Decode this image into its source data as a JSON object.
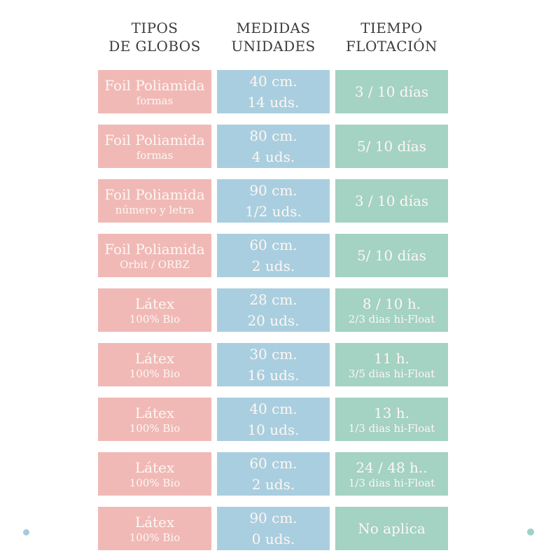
{
  "headers": {
    "tipos": [
      "TIPOS",
      "DE GLOBOS"
    ],
    "medidas": [
      "MEDIDAS",
      "UNIDADES"
    ],
    "tiempo": [
      "TIEMPO",
      "FLOTACIÓN"
    ]
  },
  "rows": [
    {
      "tipo": "Foil Poliamida",
      "tipo_sub": "formas",
      "medida": "40 cm.",
      "unidades": "14 uds.",
      "tiempo": "3 / 10 días",
      "tiempo_sub": ""
    },
    {
      "tipo": "Foil Poliamida",
      "tipo_sub": "formas",
      "medida": "80 cm.",
      "unidades": "4 uds.",
      "tiempo": "5/ 10 días",
      "tiempo_sub": ""
    },
    {
      "tipo": "Foil Poliamida",
      "tipo_sub": "número y letra",
      "medida": "90 cm.",
      "unidades": "1/2 uds.",
      "tiempo": "3 / 10 días",
      "tiempo_sub": ""
    },
    {
      "tipo": "Foil Poliamida",
      "tipo_sub": "Orbit / ORBZ",
      "medida": "60 cm.",
      "unidades": "2 uds.",
      "tiempo": "5/ 10 días",
      "tiempo_sub": ""
    },
    {
      "tipo": "Látex",
      "tipo_sub": "100% Bio",
      "medida": "28 cm.",
      "unidades": "20 uds.",
      "tiempo": "8 / 10 h.",
      "tiempo_sub": "2/3 dias hi-Float"
    },
    {
      "tipo": "Látex",
      "tipo_sub": "100% Bio",
      "medida": "30 cm.",
      "unidades": "16 uds.",
      "tiempo": "11 h.",
      "tiempo_sub": "3/5 dias hi-Float"
    },
    {
      "tipo": "Látex",
      "tipo_sub": "100% Bio",
      "medida": "40 cm.",
      "unidades": "10 uds.",
      "tiempo": "13 h.",
      "tiempo_sub": "1/3 dias hi-Float"
    },
    {
      "tipo": "Látex",
      "tipo_sub": "100% Bio",
      "medida": "60 cm.",
      "unidades": "2 uds.",
      "tiempo": "24 / 48 h..",
      "tiempo_sub": "1/3 dias hi-Float"
    },
    {
      "tipo": "Látex",
      "tipo_sub": "100% Bio",
      "medida": "90 cm.",
      "unidades": "0 uds.",
      "tiempo": "No aplica",
      "tiempo_sub": ""
    }
  ],
  "colors": {
    "pink_cell": "#f0b9b6",
    "blue_cell": "#a9cedf",
    "green_cell": "#a4d2c3",
    "header_text": "#3c3c3c",
    "cell_text": "#fdf7f3",
    "dot_blue": "#a5cbde",
    "dot_teal": "#a2cfc7"
  },
  "chart_data": {
    "type": "table",
    "title": "",
    "columns": [
      "TIPOS DE GLOBOS",
      "MEDIDAS UNIDADES",
      "TIEMPO FLOTACIÓN"
    ],
    "rows": [
      [
        "Foil Poliamida formas",
        "40 cm. 14 uds.",
        "3 / 10 días"
      ],
      [
        "Foil Poliamida formas",
        "80 cm. 4 uds.",
        "5/ 10 días"
      ],
      [
        "Foil Poliamida número y letra",
        "90 cm. 1/2 uds.",
        "3 / 10 días"
      ],
      [
        "Foil Poliamida Orbit / ORBZ",
        "60 cm. 2 uds.",
        "5/ 10 días"
      ],
      [
        "Látex 100% Bio",
        "28 cm. 20 uds.",
        "8 / 10 h. 2/3 dias hi-Float"
      ],
      [
        "Látex 100% Bio",
        "30 cm. 16 uds.",
        "11 h. 3/5 dias hi-Float"
      ],
      [
        "Látex 100% Bio",
        "40 cm. 10 uds.",
        "13 h. 1/3 dias hi-Float"
      ],
      [
        "Látex 100% Bio",
        "60 cm. 2 uds.",
        "24 / 48 h.. 1/3 dias hi-Float"
      ],
      [
        "Látex 100% Bio",
        "90 cm. 0 uds.",
        "No aplica"
      ]
    ],
    "legend_position": "none",
    "grid": false
  }
}
